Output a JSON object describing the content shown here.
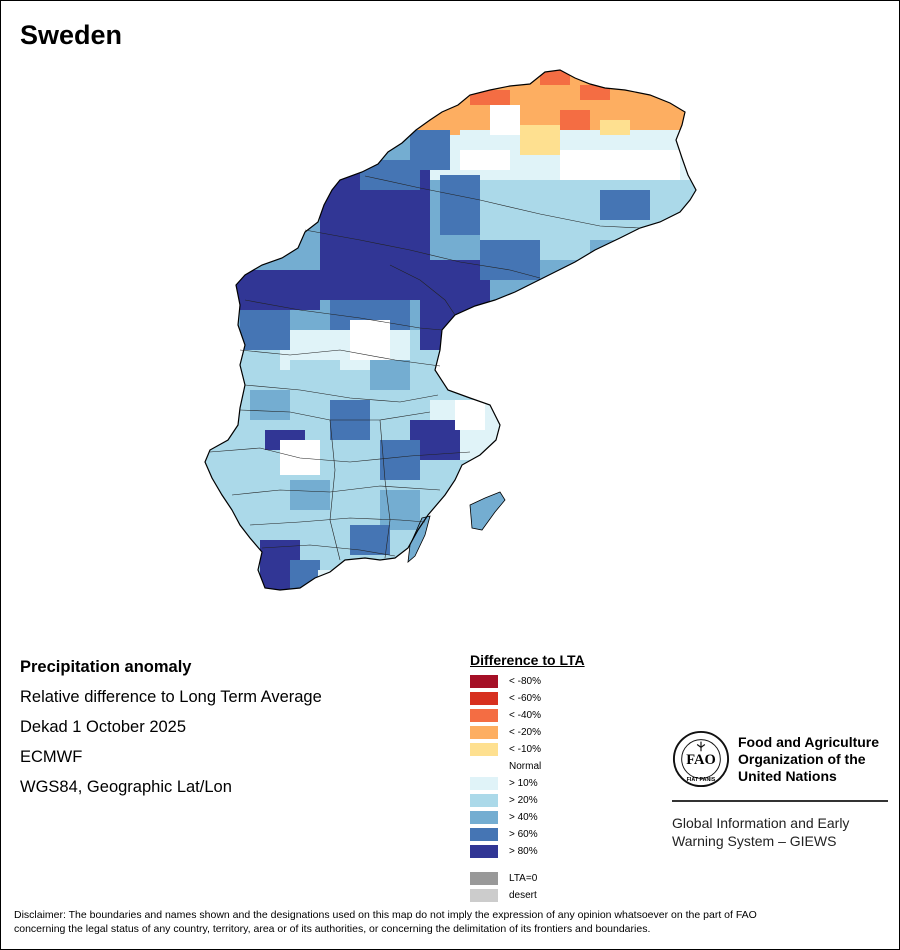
{
  "map": {
    "title": "Sweden",
    "info": {
      "line1": "Precipitation anomaly",
      "line2": "Relative difference to Long Term Average",
      "line3": "Dekad 1 October 2025",
      "line4": "ECMWF",
      "line5": "WGS84, Geographic Lat/Lon"
    }
  },
  "legend": {
    "title": "Difference to LTA",
    "items": [
      {
        "label": "< -80%",
        "color": "#a50f26"
      },
      {
        "label": "< -60%",
        "color": "#d7301f"
      },
      {
        "label": "< -40%",
        "color": "#f46d43"
      },
      {
        "label": "< -20%",
        "color": "#fdae61"
      },
      {
        "label": "< -10%",
        "color": "#fee090"
      },
      {
        "label": "Normal",
        "color": "#ffffff"
      },
      {
        "label": "> 10%",
        "color": "#e0f3f8"
      },
      {
        "label": "> 20%",
        "color": "#abd9e9"
      },
      {
        "label": "> 40%",
        "color": "#74add1"
      },
      {
        "label": "> 60%",
        "color": "#4575b4"
      },
      {
        "label": "> 80%",
        "color": "#313695"
      }
    ],
    "extra": [
      {
        "label": "LTA=0",
        "color": "#999999"
      },
      {
        "label": "desert",
        "color": "#cccccc"
      }
    ]
  },
  "fao": {
    "name_line1": "Food and Agriculture",
    "name_line2": "Organization of the",
    "name_line3": "United Nations",
    "giews_line1": "Global Information and Early",
    "giews_line2": "Warning System – GIEWS",
    "logo_text": "FAO FIAT PANIS"
  },
  "disclaimer": {
    "line1": "Disclaimer: The boundaries and names shown and the designations used on this map do not imply the expression of any opinion whatsoever on the part of FAO",
    "line2": "concerning the legal status of any country, territory, area or of its authorities, or concerning the delimitation of its frontiers and boundaries."
  }
}
